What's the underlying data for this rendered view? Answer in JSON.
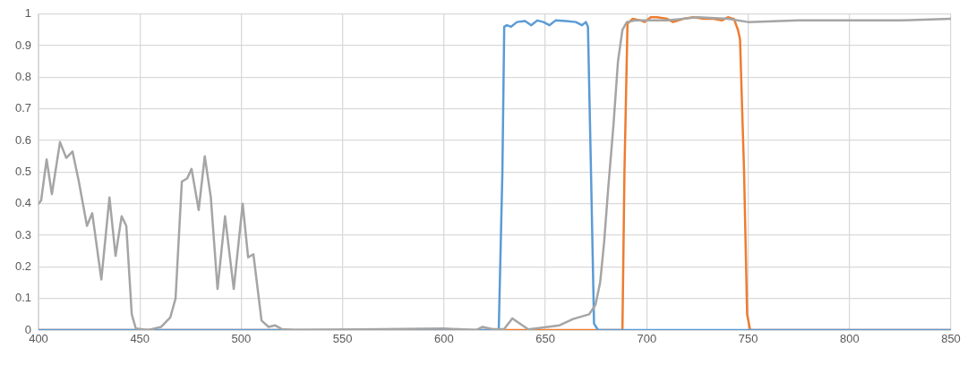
{
  "chart_data": {
    "type": "line",
    "xlim": [
      400,
      850
    ],
    "xticks": [
      400,
      450,
      500,
      550,
      600,
      650,
      700,
      750,
      800,
      850
    ],
    "ylim": [
      0,
      1
    ],
    "yticks": [
      0,
      0.1,
      0.2,
      0.3,
      0.4,
      0.5,
      0.6,
      0.7,
      0.8,
      0.9,
      1
    ],
    "grid": true,
    "legend": false,
    "marker": "none",
    "line_style": "solid",
    "series": [
      {
        "color": "#a5a5a5",
        "x": [
          400,
          401.3,
          404,
          406.6,
          410.6,
          413.7,
          416.8,
          419.9,
          423.9,
          426.5,
          431,
          435,
          438,
          441,
          443.3,
          446,
          448,
          454,
          460.5,
          465,
          467.6,
          470.7,
          473.3,
          475.5,
          479,
          482,
          485,
          488.3,
          492,
          496.3,
          500.7,
          503.4,
          506,
          510,
          513.5,
          516.6,
          520,
          527,
          600,
          615.8,
          619,
          624,
          629.6,
          633.7,
          641.6,
          657,
          663.7,
          671.6,
          674.7,
          677,
          679,
          681,
          683.6,
          685.8,
          688,
          690.2,
          694.6,
          710,
          725,
          740,
          750,
          775,
          800,
          825,
          850
        ],
        "values": [
          0.4,
          0.41,
          0.54,
          0.43,
          0.595,
          0.545,
          0.565,
          0.47,
          0.33,
          0.37,
          0.16,
          0.42,
          0.235,
          0.36,
          0.33,
          0.05,
          0.005,
          0,
          0.01,
          0.04,
          0.1,
          0.47,
          0.48,
          0.51,
          0.38,
          0.55,
          0.42,
          0.13,
          0.36,
          0.13,
          0.4,
          0.23,
          0.24,
          0.03,
          0.01,
          0.015,
          0.003,
          0,
          0.005,
          0,
          0.01,
          0.003,
          0.003,
          0.037,
          0.002,
          0.015,
          0.035,
          0.05,
          0.08,
          0.15,
          0.28,
          0.45,
          0.65,
          0.85,
          0.95,
          0.975,
          0.98,
          0.98,
          0.99,
          0.985,
          0.975,
          0.98,
          0.98,
          0.98,
          0.985
        ]
      },
      {
        "color": "#5b9bd5",
        "x": [
          400,
          627,
          628.8,
          629.7,
          631,
          633,
          636,
          640,
          643,
          646,
          649,
          652,
          655,
          660,
          665,
          668,
          670,
          671,
          672.5,
          674,
          676,
          850
        ],
        "values": [
          0,
          0,
          0.5,
          0.96,
          0.965,
          0.96,
          0.975,
          0.978,
          0.965,
          0.98,
          0.975,
          0.965,
          0.98,
          0.978,
          0.975,
          0.965,
          0.975,
          0.96,
          0.5,
          0.02,
          0,
          0
        ]
      },
      {
        "color": "#ed7d31",
        "x": [
          400,
          688,
          689,
          690.5,
          693,
          697,
          699,
          702,
          705,
          710,
          713,
          718,
          723,
          728,
          733,
          737,
          740,
          743,
          745,
          746,
          748,
          749.5,
          751,
          850
        ],
        "values": [
          0,
          0,
          0.5,
          0.97,
          0.985,
          0.98,
          0.975,
          0.99,
          0.99,
          0.985,
          0.975,
          0.985,
          0.99,
          0.985,
          0.985,
          0.98,
          0.99,
          0.985,
          0.95,
          0.92,
          0.5,
          0.05,
          0,
          0
        ]
      }
    ]
  }
}
